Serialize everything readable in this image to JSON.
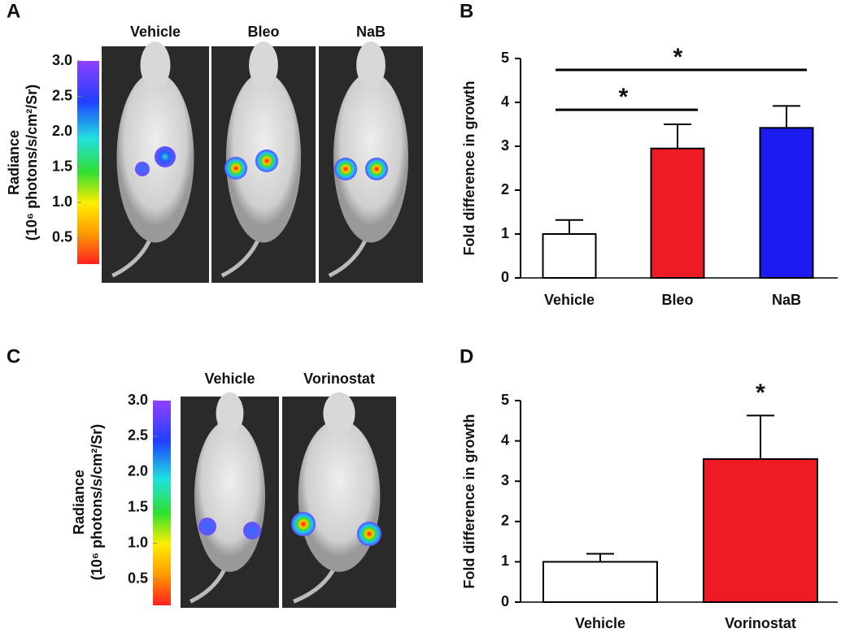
{
  "panel_labels": [
    "A",
    "B",
    "C",
    "D"
  ],
  "imaging": [
    {
      "conditions": [
        "Vehicle",
        "Bleo",
        "NaB"
      ],
      "colorbar": {
        "title": [
          "Radiance",
          "(10⁶ photons/s/cm²/Sr)"
        ],
        "lim": [
          0.13,
          3.0
        ],
        "ticks": [
          0.5,
          {
            "value": 1,
            "label": "1.0"
          },
          1.5,
          {
            "value": 2,
            "label": "2.0"
          },
          2.5,
          {
            "value": 3,
            "label": "3.0"
          }
        ]
      }
    },
    {
      "conditions": [
        "Vehicle",
        "Vorinostat"
      ],
      "colorbar": {
        "title": [
          "Radiance",
          "(10⁶ photons/s/cm²/Sr)"
        ],
        "lim": [
          0.13,
          3.0
        ],
        "ticks": [
          0.5,
          {
            "value": 1,
            "label": "1.0"
          },
          1.5,
          {
            "value": 2,
            "label": "2.0"
          },
          2.5,
          {
            "value": 3,
            "label": "3.0"
          }
        ]
      }
    }
  ],
  "chart_data": [
    {
      "type": "bar",
      "y_label": "Fold difference in growth",
      "categories": [
        "Vehicle",
        "Bleo",
        "NaB"
      ],
      "values": [
        1.0,
        2.95,
        3.42
      ],
      "errors": [
        0.32,
        0.55,
        0.5
      ],
      "colors": [
        "#ffffff",
        "#ed1c24",
        "#1c1cf0"
      ],
      "ylim": [
        0,
        5
      ],
      "yticks": [
        0,
        1,
        2,
        3,
        4,
        5
      ],
      "annotations": [
        {
          "text": "*",
          "span": [
            "Vehicle",
            "Bleo"
          ]
        },
        {
          "text": "*",
          "span": [
            "Vehicle",
            "NaB"
          ]
        }
      ]
    },
    {
      "type": "bar",
      "y_label": "Fold difference in growth",
      "categories": [
        "Vehicle",
        "Vorinostat"
      ],
      "values": [
        1.0,
        3.55
      ],
      "errors": [
        0.2,
        1.08
      ],
      "colors": [
        "#ffffff",
        "#ed1c24"
      ],
      "ylim": [
        0,
        5
      ],
      "yticks": [
        0,
        1,
        2,
        3,
        4,
        5
      ],
      "annotations": [
        {
          "text": "*",
          "span": [
            "Vorinostat"
          ]
        }
      ]
    }
  ]
}
